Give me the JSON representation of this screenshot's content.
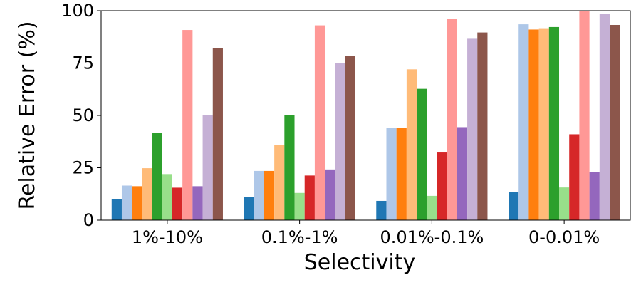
{
  "chart_data": {
    "type": "bar",
    "title": "",
    "xlabel": "Selectivity",
    "ylabel": "Relative Error (%)",
    "ylim": [
      0,
      100
    ],
    "yticks": [
      "0",
      "25",
      "50",
      "75",
      "100"
    ],
    "grid": false,
    "legend": "none",
    "categories": [
      "1%-10%",
      "0.1%-1%",
      "0.01%-0.1%",
      "0-0.01%"
    ],
    "series": [
      {
        "color": "#1f77b4",
        "values": [
          10.2,
          11.0,
          9.2,
          13.5
        ]
      },
      {
        "color": "#aec7e8",
        "values": [
          16.5,
          23.5,
          44.0,
          93.5
        ]
      },
      {
        "color": "#ff7f0e",
        "values": [
          16.2,
          23.5,
          44.2,
          91.0
        ]
      },
      {
        "color": "#ffbb78",
        "values": [
          24.8,
          35.8,
          72.0,
          91.3
        ]
      },
      {
        "color": "#2ca02c",
        "values": [
          41.5,
          50.2,
          62.7,
          92.2
        ]
      },
      {
        "color": "#98df8a",
        "values": [
          22.0,
          13.0,
          11.6,
          15.6
        ]
      },
      {
        "color": "#d62728",
        "values": [
          15.5,
          21.3,
          32.3,
          41.0
        ]
      },
      {
        "color": "#ff9896",
        "values": [
          90.8,
          93.0,
          96.0,
          100.0
        ]
      },
      {
        "color": "#9467bd",
        "values": [
          16.2,
          24.2,
          44.4,
          22.8
        ]
      },
      {
        "color": "#c5b0d5",
        "values": [
          50.0,
          75.0,
          86.6,
          98.3
        ]
      },
      {
        "color": "#8c564b",
        "values": [
          82.3,
          78.4,
          89.6,
          93.2
        ]
      }
    ]
  }
}
